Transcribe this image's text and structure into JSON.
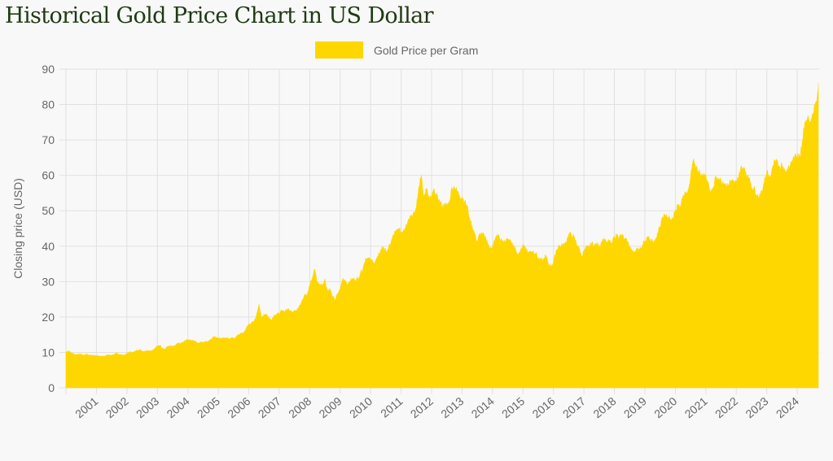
{
  "page": {
    "title": "Historical Gold Price Chart in US Dollar"
  },
  "colors": {
    "fill": "#ffd700",
    "grid": "#e1e1e1",
    "title": "#1f3a12",
    "text": "#666666",
    "background": "#f8f8f8"
  },
  "chart_data": {
    "type": "area",
    "title": "Historical Gold Price Chart in US Dollar",
    "xlabel": "",
    "ylabel": "Closing price (USD)",
    "legend": {
      "position": "top-center",
      "entries": [
        "Gold Price per Gram"
      ]
    },
    "grid": true,
    "ylim": [
      0,
      90
    ],
    "yticks": [
      0,
      10,
      20,
      30,
      40,
      50,
      60,
      70,
      80,
      90
    ],
    "xlim": [
      2000.0,
      2024.75
    ],
    "xticks": [
      "2001",
      "2002",
      "2003",
      "2004",
      "2005",
      "2006",
      "2007",
      "2008",
      "2009",
      "2010",
      "2011",
      "2012",
      "2013",
      "2014",
      "2015",
      "2016",
      "2017",
      "2018",
      "2019",
      "2020",
      "2021",
      "2022",
      "2023",
      "2024"
    ],
    "series": [
      {
        "name": "Gold Price per Gram",
        "start": 2000.0,
        "step_years": 0.0833333,
        "values": [
          10.1,
          10.5,
          9.9,
          9.6,
          9.4,
          9.5,
          9.4,
          9.2,
          9.5,
          9.3,
          9.2,
          9.1,
          9.1,
          9.0,
          9.0,
          8.9,
          9.2,
          9.3,
          9.2,
          9.3,
          9.9,
          9.4,
          9.3,
          9.3,
          9.6,
          10.1,
          10.0,
          10.2,
          10.6,
          10.8,
          10.4,
          10.3,
          10.6,
          10.5,
          10.6,
          11.1,
          11.8,
          12.0,
          11.2,
          10.9,
          11.7,
          11.8,
          11.6,
          11.9,
          12.5,
          12.5,
          12.8,
          13.3,
          13.6,
          13.4,
          13.4,
          13.2,
          12.6,
          12.8,
          12.9,
          13.1,
          13.2,
          13.7,
          14.3,
          14.4,
          14.0,
          14.0,
          14.2,
          14.0,
          13.9,
          14.1,
          13.9,
          14.4,
          15.0,
          15.4,
          15.6,
          16.8,
          18.0,
          18.3,
          18.5,
          20.5,
          23.6,
          19.6,
          20.8,
          20.8,
          19.7,
          19.2,
          20.6,
          20.8,
          20.9,
          21.8,
          21.4,
          22.3,
          21.9,
          21.5,
          21.9,
          21.8,
          23.3,
          24.7,
          26.3,
          26.1,
          29.0,
          31.0,
          33.5,
          29.8,
          29.1,
          29.2,
          30.7,
          27.4,
          27.8,
          25.8,
          24.8,
          26.6,
          27.8,
          30.8,
          30.4,
          29.0,
          30.2,
          30.8,
          30.4,
          30.9,
          32.4,
          33.8,
          36.5,
          36.7,
          36.2,
          35.4,
          35.9,
          37.2,
          39.0,
          39.8,
          38.6,
          39.3,
          41.0,
          43.2,
          44.2,
          44.8,
          43.9,
          44.6,
          46.1,
          47.7,
          48.9,
          49.4,
          50.8,
          56.8,
          60.0,
          53.8,
          56.2,
          53.4,
          53.6,
          56.2,
          54.1,
          53.3,
          51.2,
          51.6,
          51.4,
          52.6,
          56.5,
          56.6,
          55.6,
          54.3,
          53.9,
          52.5,
          51.4,
          47.9,
          45.6,
          43.3,
          41.4,
          43.4,
          43.4,
          42.4,
          41.1,
          39.4,
          40.1,
          41.9,
          43.4,
          41.9,
          41.5,
          41.2,
          42.2,
          41.8,
          39.9,
          39.4,
          37.9,
          38.7,
          40.4,
          39.6,
          38.0,
          38.6,
          38.6,
          38.0,
          36.5,
          35.9,
          36.2,
          37.3,
          35.0,
          34.4,
          35.4,
          38.6,
          40.1,
          40.0,
          40.6,
          41.1,
          43.4,
          43.2,
          42.7,
          40.8,
          39.8,
          37.2,
          38.4,
          39.7,
          39.7,
          40.8,
          40.1,
          40.6,
          39.8,
          41.3,
          42.3,
          41.2,
          41.3,
          40.7,
          42.9,
          42.9,
          42.7,
          43.0,
          42.0,
          41.3,
          39.9,
          38.7,
          38.6,
          39.1,
          39.3,
          40.3,
          41.6,
          42.5,
          41.9,
          41.4,
          41.3,
          43.8,
          45.5,
          48.3,
          48.7,
          48.2,
          47.4,
          47.7,
          50.3,
          51.5,
          51.3,
          54.3,
          55.4,
          55.9,
          59.6,
          64.2,
          61.9,
          61.2,
          60.1,
          59.9,
          60.2,
          58.2,
          55.3,
          56.7,
          59.6,
          59.1,
          58.2,
          57.5,
          57.2,
          57.3,
          58.6,
          57.7,
          58.5,
          59.8,
          62.7,
          62.3,
          59.5,
          59.2,
          55.8,
          56.8,
          54.2,
          53.6,
          55.6,
          58.0,
          61.1,
          59.7,
          61.6,
          64.4,
          64.2,
          62.6,
          62.9,
          61.8,
          61.7,
          61.7,
          64.0,
          65.4,
          65.5,
          65.2,
          69.6,
          75.2,
          76.0,
          75.0,
          77.4,
          80.0,
          83.2,
          86.0
        ]
      }
    ]
  }
}
